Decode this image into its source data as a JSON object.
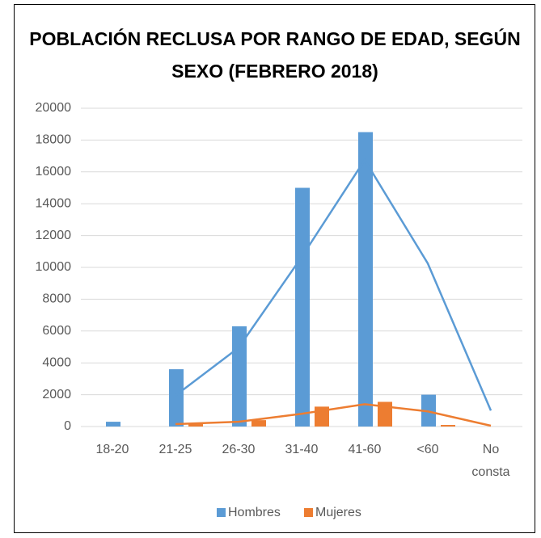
{
  "chart_data": {
    "type": "bar",
    "title": "POBLACIÓN RECLUSA POR RANGO DE EDAD, SEGÚN SEXO (FEBRERO 2018)",
    "categories": [
      "18-20",
      "21-25",
      "26-30",
      "31-40",
      "41-60",
      "<60",
      "No consta"
    ],
    "series": [
      {
        "name": "Hombres",
        "color": "#5b9bd5",
        "values": [
          300,
          3600,
          6300,
          15000,
          18500,
          2000,
          0
        ],
        "trendline": [
          null,
          1950,
          4950,
          10650,
          16750,
          10250,
          1000
        ]
      },
      {
        "name": "Mujeres",
        "color": "#ed7d31",
        "values": [
          0,
          150,
          400,
          1250,
          1550,
          100,
          0
        ],
        "trendline": [
          null,
          150,
          300,
          800,
          1400,
          950,
          50
        ]
      }
    ],
    "ylim": [
      0,
      20000
    ],
    "yticks": [
      0,
      2000,
      4000,
      6000,
      8000,
      10000,
      12000,
      14000,
      16000,
      18000,
      20000
    ],
    "grid": true,
    "legend": "bottom"
  }
}
